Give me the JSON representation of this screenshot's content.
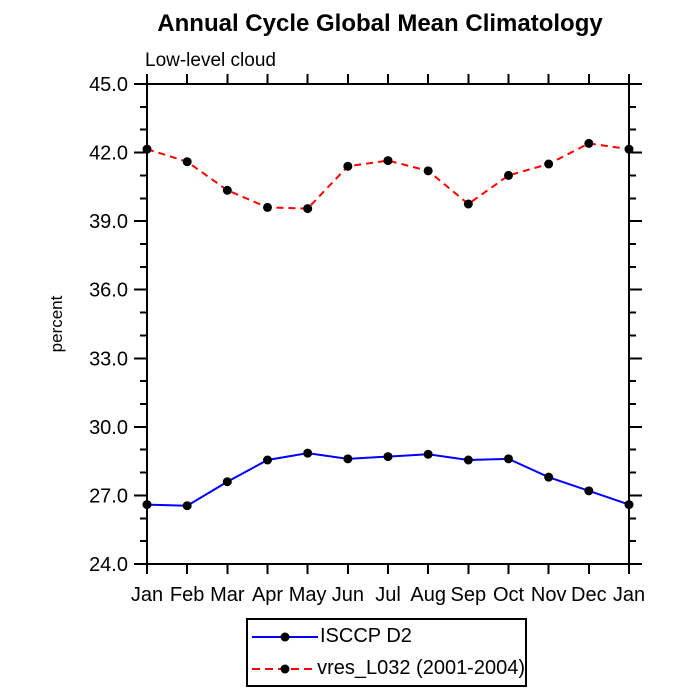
{
  "chart_data": {
    "type": "line",
    "title": "Annual Cycle Global Mean Climatology",
    "subtitle": "Low-level cloud",
    "ylabel": "percent",
    "xlabel": "",
    "categories": [
      "Jan",
      "Feb",
      "Mar",
      "Apr",
      "May",
      "Jun",
      "Jul",
      "Aug",
      "Sep",
      "Oct",
      "Nov",
      "Dec",
      "Jan"
    ],
    "ylim": [
      24.0,
      45.0
    ],
    "ytick_step_major": 3.0,
    "ytick_step_minor": 1.0,
    "ytick_labels": [
      "24.0",
      "27.0",
      "30.0",
      "33.0",
      "36.0",
      "39.0",
      "42.0",
      "45.0"
    ],
    "grid": false,
    "legend_position": "bottom-center",
    "axis_color": "#000000",
    "text_color": "#000000",
    "background_color": "#ffffff",
    "series": [
      {
        "name": "ISCCP D2",
        "color": "#0000ff",
        "line_style": "solid",
        "marker": "filled-circle",
        "marker_color": "#000000",
        "values": [
          26.6,
          26.55,
          27.6,
          28.55,
          28.85,
          28.6,
          28.7,
          28.8,
          28.55,
          28.6,
          27.8,
          27.2,
          26.6
        ]
      },
      {
        "name": "vres_L032 (2001-2004)",
        "color": "#ff0000",
        "line_style": "dashed",
        "marker": "filled-circle",
        "marker_color": "#000000",
        "values": [
          42.15,
          41.6,
          40.35,
          39.6,
          39.55,
          41.4,
          41.65,
          41.2,
          39.75,
          41.0,
          41.5,
          42.4,
          42.15
        ]
      }
    ]
  }
}
